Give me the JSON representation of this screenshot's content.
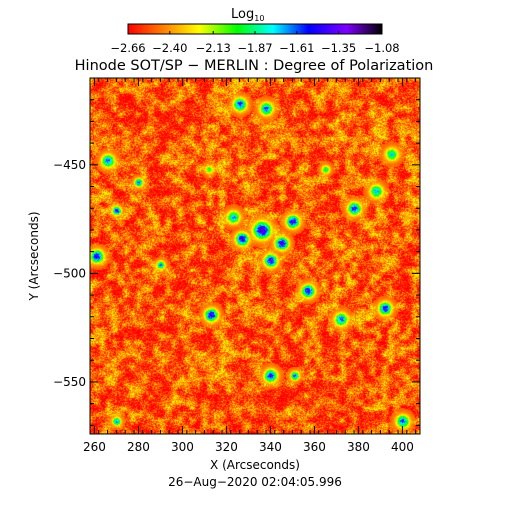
{
  "chart_data": {
    "type": "heatmap",
    "title": "Hinode SOT/SP − MERLIN : Degree of Polarization",
    "timestamp": "26−Aug−2020 02:04:05.996",
    "xlabel": "X (Arcseconds)",
    "ylabel": "Y (Arcseconds)",
    "xlim": [
      258,
      408
    ],
    "ylim": [
      -574,
      -410
    ],
    "x_ticks": [
      260,
      280,
      300,
      320,
      340,
      360,
      380,
      400
    ],
    "y_ticks": [
      -450,
      -500,
      -550
    ],
    "x_tick_labels": [
      "260",
      "280",
      "300",
      "320",
      "340",
      "360",
      "380",
      "400"
    ],
    "y_tick_labels": [
      "−450",
      "−500",
      "−550"
    ],
    "colorbar": {
      "label_main": "Log",
      "label_sub": "10",
      "range": [
        -2.66,
        -1.08
      ],
      "tick_values": [
        -2.66,
        -2.4,
        -2.13,
        -1.87,
        -1.61,
        -1.35,
        -1.08
      ],
      "tick_labels": [
        "−2.66",
        "−2.40",
        "−2.13",
        "−1.87",
        "−1.61",
        "−1.35",
        "−1.08"
      ],
      "colormap": [
        "#ff0000",
        "#ff8000",
        "#ffff00",
        "#00ff00",
        "#00ffff",
        "#0000ff",
        "#7f00ff",
        "#000000"
      ]
    },
    "background_level": -2.5,
    "features": [
      {
        "x": 336,
        "y": -480,
        "r": 4,
        "level": -1.2
      },
      {
        "x": 327,
        "y": -484,
        "r": 3,
        "level": -1.25
      },
      {
        "x": 345,
        "y": -486,
        "r": 3,
        "level": -1.25
      },
      {
        "x": 350,
        "y": -476,
        "r": 3,
        "level": -1.3
      },
      {
        "x": 340,
        "y": -494,
        "r": 3,
        "level": -1.3
      },
      {
        "x": 323,
        "y": -474,
        "r": 3,
        "level": -1.6
      },
      {
        "x": 326,
        "y": -422,
        "r": 3,
        "level": -1.4
      },
      {
        "x": 338,
        "y": -424,
        "r": 3,
        "level": -1.5
      },
      {
        "x": 313,
        "y": -519,
        "r": 3,
        "level": -1.3
      },
      {
        "x": 357,
        "y": -508,
        "r": 3,
        "level": -1.3
      },
      {
        "x": 372,
        "y": -521,
        "r": 3,
        "level": -1.5
      },
      {
        "x": 392,
        "y": -516,
        "r": 3,
        "level": -1.4
      },
      {
        "x": 378,
        "y": -470,
        "r": 3,
        "level": -1.4
      },
      {
        "x": 388,
        "y": -462,
        "r": 3,
        "level": -1.6
      },
      {
        "x": 395,
        "y": -445,
        "r": 3,
        "level": -1.7
      },
      {
        "x": 266,
        "y": -448,
        "r": 3,
        "level": -1.5
      },
      {
        "x": 280,
        "y": -458,
        "r": 2,
        "level": -1.5
      },
      {
        "x": 270,
        "y": -471,
        "r": 2,
        "level": -1.3
      },
      {
        "x": 261,
        "y": -492,
        "r": 3,
        "level": -1.3
      },
      {
        "x": 290,
        "y": -496,
        "r": 2,
        "level": -1.6
      },
      {
        "x": 340,
        "y": -547,
        "r": 3,
        "level": -1.4
      },
      {
        "x": 351,
        "y": -547,
        "r": 2,
        "level": -1.5
      },
      {
        "x": 270,
        "y": -568,
        "r": 2,
        "level": -1.6
      },
      {
        "x": 400,
        "y": -568,
        "r": 3,
        "level": -1.5
      },
      {
        "x": 365,
        "y": -452,
        "r": 2,
        "level": -1.8
      },
      {
        "x": 312,
        "y": -452,
        "r": 2,
        "level": -1.9
      }
    ]
  }
}
